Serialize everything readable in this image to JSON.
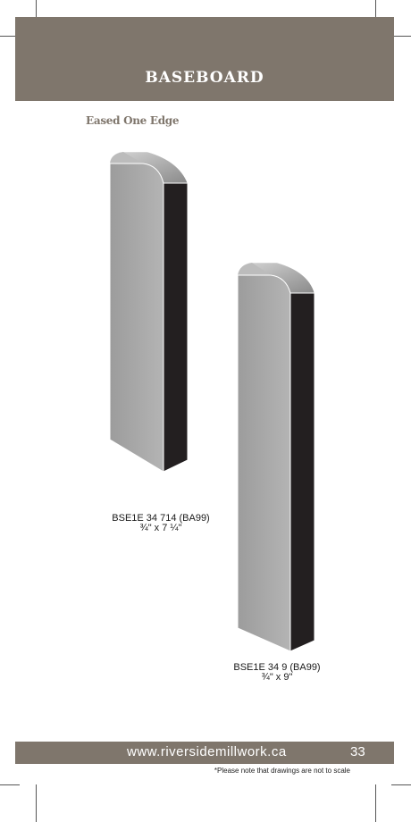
{
  "header": {
    "title": "BASEBOARD"
  },
  "section": {
    "profile": "Eased One Edge"
  },
  "products": [
    {
      "code": "BSE1E 34 714 (BA99)",
      "size": "¾\" x 7 ¼\""
    },
    {
      "code": "BSE1E 34 9 (BA99)",
      "size": "¾\" x 9\""
    }
  ],
  "footer": {
    "website": "www.riversidemillwork.ca",
    "page_number": "33",
    "note": "*Please note that drawings are not to scale"
  },
  "colors": {
    "brand": "#7f766c",
    "board_face": "#a9a9a9",
    "board_edge": "#231f20"
  }
}
